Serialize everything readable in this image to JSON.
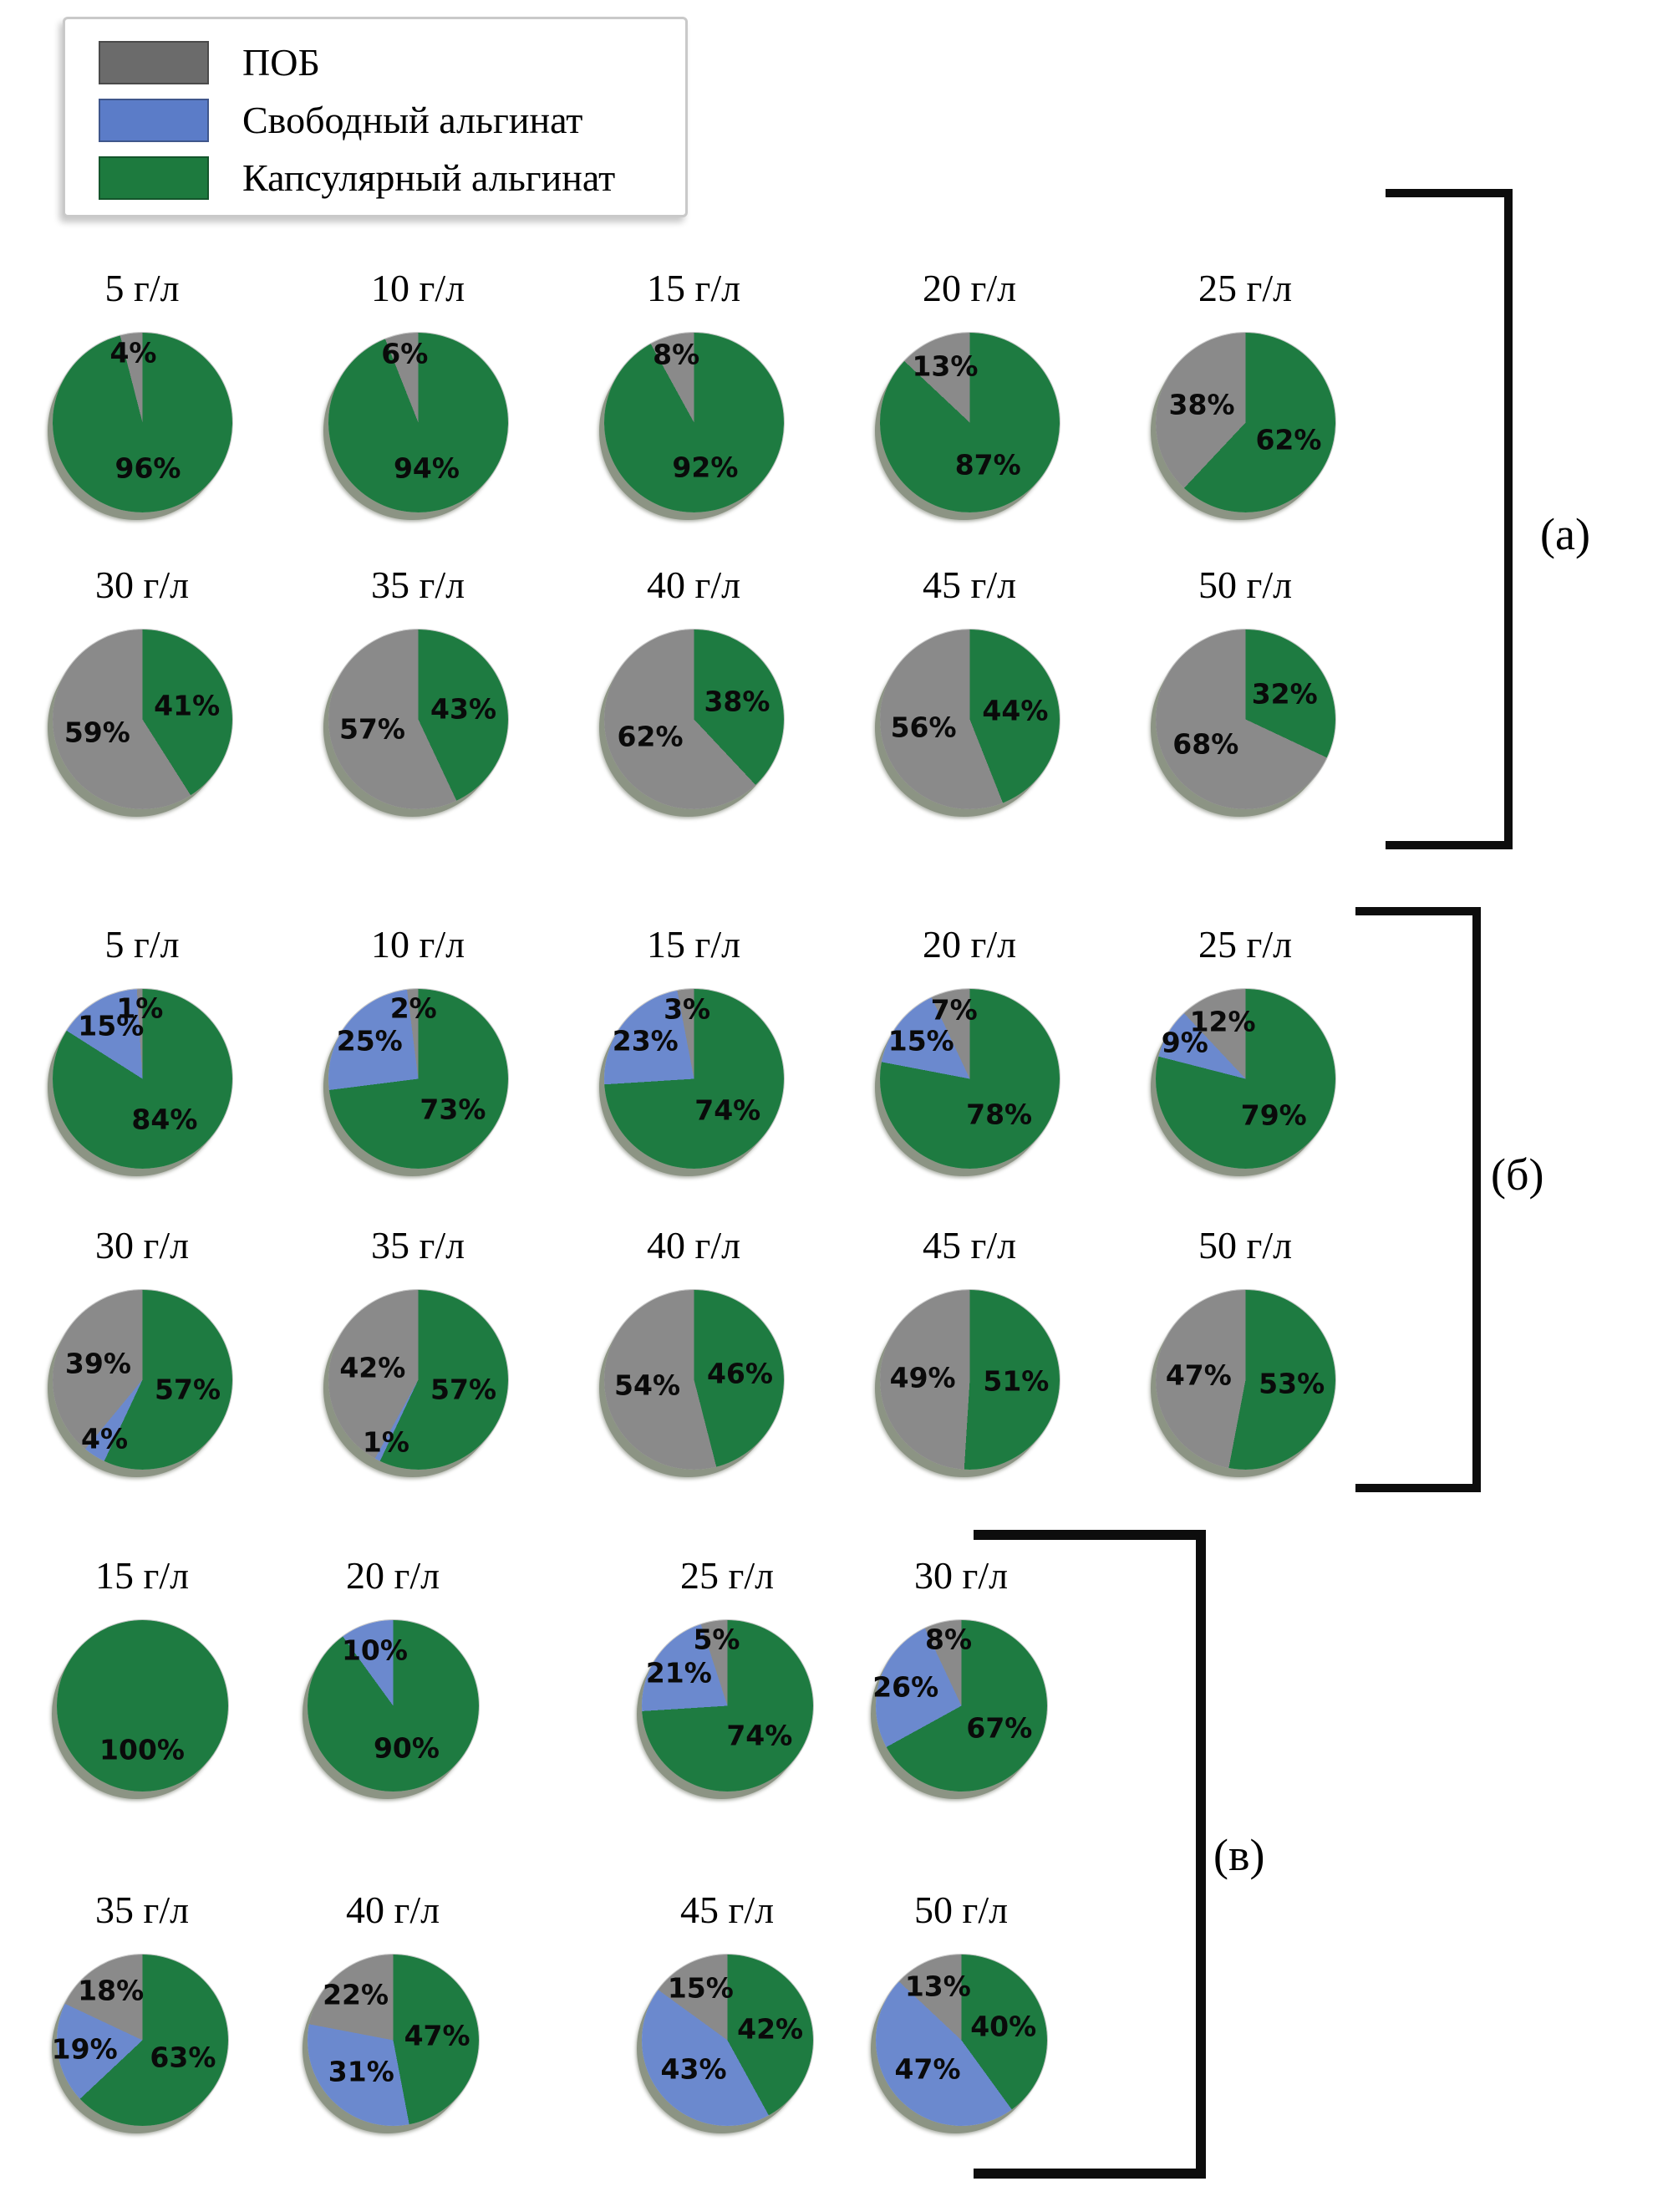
{
  "figure": {
    "legend": {
      "items": [
        {
          "label": "ПОБ",
          "swatch_color": "#6b6b6b"
        },
        {
          "label": "Свободный альгинат",
          "swatch_color": "#5b7cc8"
        },
        {
          "label": "Капсулярный альгинат",
          "swatch_color": "#1d7a3e"
        }
      ]
    }
  },
  "chart_data": {
    "type": "pie",
    "categories": [
      "ПОБ",
      "Свободный альгинат",
      "Капсулярный альгинат"
    ],
    "colors": [
      "#8a8a8a",
      "#6b89ce",
      "#1e7b41"
    ],
    "value_unit": "%",
    "note": "values per pie are ordered [ПОБ, Свободный альгинат, Капсулярный альгинат]",
    "groups": [
      {
        "label": "(а)",
        "rows": [
          [
            {
              "title": "5 г/л",
              "values": [
                4,
                0,
                96
              ]
            },
            {
              "title": "10 г/л",
              "values": [
                6,
                0,
                94
              ]
            },
            {
              "title": "15 г/л",
              "values": [
                8,
                0,
                92
              ]
            },
            {
              "title": "20 г/л",
              "values": [
                13,
                0,
                87
              ]
            },
            {
              "title": "25 г/л",
              "values": [
                38,
                0,
                62
              ]
            }
          ],
          [
            {
              "title": "30 г/л",
              "values": [
                59,
                0,
                41
              ]
            },
            {
              "title": "35 г/л",
              "values": [
                57,
                0,
                43
              ]
            },
            {
              "title": "40 г/л",
              "values": [
                62,
                0,
                38
              ]
            },
            {
              "title": "45 г/л",
              "values": [
                56,
                0,
                44
              ]
            },
            {
              "title": "50 г/л",
              "values": [
                68,
                0,
                32
              ]
            }
          ]
        ]
      },
      {
        "label": "(б)",
        "rows": [
          [
            {
              "title": "5 г/л",
              "values": [
                1,
                15,
                84
              ]
            },
            {
              "title": "10 г/л",
              "values": [
                2,
                25,
                73
              ]
            },
            {
              "title": "15 г/л",
              "values": [
                3,
                23,
                74
              ]
            },
            {
              "title": "20 г/л",
              "values": [
                7,
                15,
                78
              ]
            },
            {
              "title": "25 г/л",
              "values": [
                12,
                9,
                79
              ]
            }
          ],
          [
            {
              "title": "30 г/л",
              "values": [
                39,
                4,
                57
              ]
            },
            {
              "title": "35 г/л",
              "values": [
                42,
                1,
                57
              ]
            },
            {
              "title": "40 г/л",
              "values": [
                54,
                0,
                46
              ]
            },
            {
              "title": "45 г/л",
              "values": [
                49,
                0,
                51
              ]
            },
            {
              "title": "50 г/л",
              "values": [
                47,
                0,
                53
              ]
            }
          ]
        ]
      },
      {
        "label": "(в)",
        "rows": [
          [
            {
              "title": "15 г/л",
              "values": [
                0,
                0,
                100
              ]
            },
            {
              "title": "20 г/л",
              "values": [
                0,
                10,
                90
              ]
            },
            {
              "title": "25 г/л",
              "values": [
                5,
                21,
                74
              ]
            },
            {
              "title": "30 г/л",
              "values": [
                8,
                26,
                67
              ]
            }
          ],
          [
            {
              "title": "35 г/л",
              "values": [
                18,
                19,
                63
              ]
            },
            {
              "title": "40 г/л",
              "values": [
                22,
                31,
                47
              ]
            },
            {
              "title": "45 г/л",
              "values": [
                15,
                43,
                42
              ]
            },
            {
              "title": "50 г/л",
              "values": [
                13,
                47,
                40
              ]
            }
          ]
        ]
      }
    ]
  }
}
